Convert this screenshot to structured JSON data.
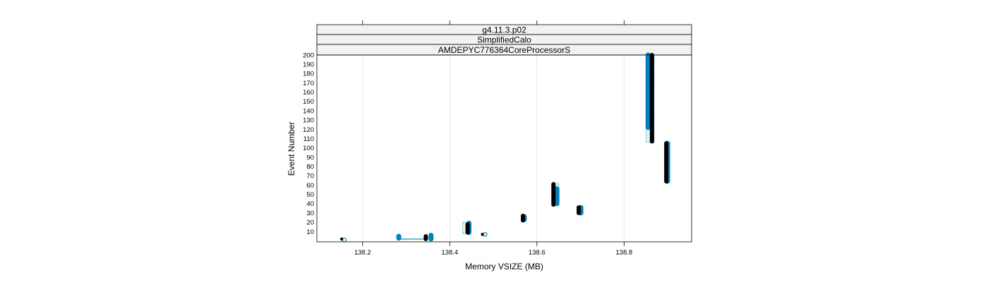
{
  "chart_data": {
    "type": "scatter",
    "strips": [
      "g4.11.3.p02",
      "SimplifiedCalo",
      "AMDEPYC776364CoreProcessorS"
    ],
    "xlabel": "Memory VSIZE (MB)",
    "ylabel": "Event Number",
    "xlim": [
      138.095,
      138.955
    ],
    "ylim": [
      -1,
      200
    ],
    "xticks": [
      138.2,
      138.4,
      138.6,
      138.8
    ],
    "xtick_labels": [
      "138.2",
      "138.4",
      "138.6",
      "138.8"
    ],
    "yticks": [
      10,
      20,
      30,
      40,
      50,
      60,
      70,
      80,
      90,
      100,
      110,
      120,
      130,
      140,
      150,
      160,
      170,
      180,
      190,
      200
    ],
    "vertical_grid": true,
    "colors": {
      "series_a": "#000000",
      "series_b": "#0080c0"
    },
    "series": [
      {
        "key": "series_a",
        "segments": [
          {
            "x": 138.152,
            "ymin": 1,
            "ymax": 2
          },
          {
            "x": 138.345,
            "ymin": 2,
            "ymax": 5
          },
          {
            "x": 138.441,
            "ymin": 9,
            "ymax": 18
          },
          {
            "x": 138.475,
            "ymin": 7,
            "ymax": 7
          },
          {
            "x": 138.568,
            "ymin": 22,
            "ymax": 27
          },
          {
            "x": 138.638,
            "ymin": 39,
            "ymax": 61
          },
          {
            "x": 138.696,
            "ymin": 30,
            "ymax": 36
          },
          {
            "x": 138.864,
            "ymin": 107,
            "ymax": 200
          },
          {
            "x": 138.897,
            "ymin": 64,
            "ymax": 105
          }
        ]
      },
      {
        "key": "series_b",
        "segments": [
          {
            "x": 138.158,
            "ymin": 1,
            "ymax": 1
          },
          {
            "x": 138.283,
            "ymin": 3,
            "ymax": 5
          },
          {
            "x": 138.357,
            "ymin": 2,
            "ymax": 6
          },
          {
            "x": 138.444,
            "ymin": 9,
            "ymax": 19
          },
          {
            "x": 138.481,
            "ymin": 7,
            "ymax": 7
          },
          {
            "x": 138.571,
            "ymin": 23,
            "ymax": 26
          },
          {
            "x": 138.646,
            "ymin": 40,
            "ymax": 56
          },
          {
            "x": 138.701,
            "ymin": 30,
            "ymax": 36
          },
          {
            "x": 138.855,
            "ymin": 122,
            "ymax": 200
          },
          {
            "x": 138.899,
            "ymin": 64,
            "ymax": 105
          }
        ],
        "connectors": [
          {
            "x1": 138.283,
            "x2": 138.345,
            "y": 2
          }
        ]
      }
    ],
    "ranges": [
      {
        "x1": 138.156,
        "x2": 138.16,
        "ymin": 0,
        "ymax": 2
      },
      {
        "x1": 138.281,
        "x2": 138.286,
        "ymin": 2,
        "ymax": 6
      },
      {
        "x1": 138.354,
        "x2": 138.36,
        "ymin": 2,
        "ymax": 6
      },
      {
        "x1": 138.43,
        "x2": 138.447,
        "ymin": 8,
        "ymax": 20
      },
      {
        "x1": 138.566,
        "x2": 138.574,
        "ymin": 21,
        "ymax": 27
      },
      {
        "x1": 138.635,
        "x2": 138.65,
        "ymin": 39,
        "ymax": 62
      },
      {
        "x1": 138.694,
        "x2": 138.705,
        "ymin": 29,
        "ymax": 37
      },
      {
        "x1": 138.851,
        "x2": 138.869,
        "ymin": 106,
        "ymax": 200
      },
      {
        "x1": 138.893,
        "x2": 138.906,
        "ymin": 63,
        "ymax": 106
      }
    ]
  }
}
